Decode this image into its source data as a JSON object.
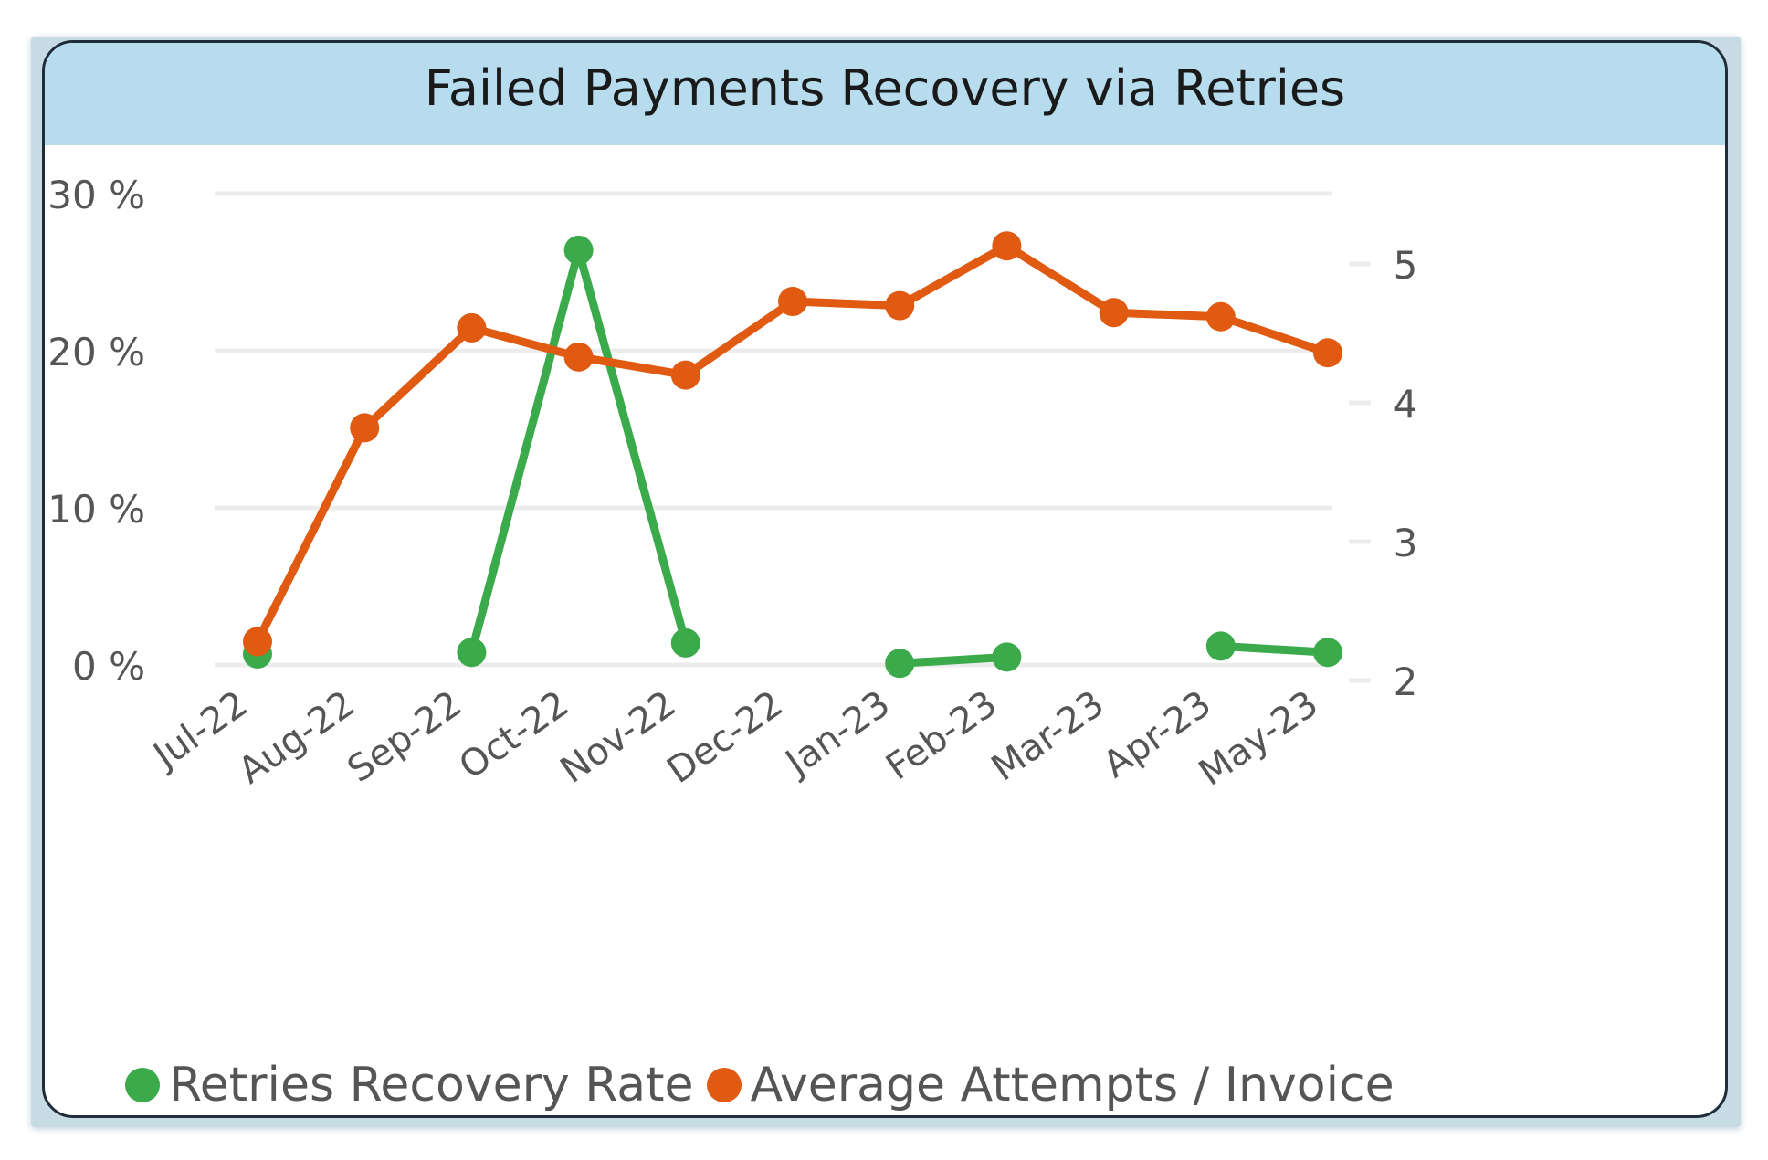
{
  "title": "Failed Payments Recovery via Retries",
  "colors": {
    "recovery_rate": "#3aaa4b",
    "avg_attempts": "#e05a12",
    "header_bg": "#b6dcee",
    "gridline": "#ececec",
    "tick_text": "#555555"
  },
  "legend": [
    {
      "label": "Retries Recovery Rate",
      "color": "#3aaa4b"
    },
    {
      "label": "Average Attempts / Invoice",
      "color": "#e05a12"
    }
  ],
  "chart_data": {
    "type": "line",
    "title": "Failed Payments Recovery via Retries",
    "categories": [
      "Jul-22",
      "Aug-22",
      "Sep-22",
      "Oct-22",
      "Nov-22",
      "Dec-22",
      "Jan-23",
      "Feb-23",
      "Mar-23",
      "Apr-23",
      "May-23"
    ],
    "y_left": {
      "ticks": [
        "0 %",
        "10 %",
        "20 %",
        "30 %"
      ],
      "range": [
        0,
        30
      ],
      "unit": "%"
    },
    "y_right": {
      "ticks": [
        "2",
        "3",
        "4",
        "5"
      ],
      "range": [
        2,
        5.2
      ]
    },
    "grid": true,
    "legend_position": "bottom-left",
    "series": [
      {
        "name": "Retries Recovery Rate",
        "axis": "left",
        "color": "#3aaa4b",
        "values": [
          0.7,
          null,
          0.8,
          26.4,
          1.4,
          null,
          0.1,
          0.5,
          null,
          1.2,
          0.8
        ]
      },
      {
        "name": "Average Attempts / Invoice",
        "axis": "right",
        "color": "#e05a12",
        "values": [
          2.28,
          3.82,
          4.54,
          4.33,
          4.2,
          4.73,
          4.7,
          5.13,
          4.65,
          4.62,
          4.36
        ]
      }
    ]
  }
}
